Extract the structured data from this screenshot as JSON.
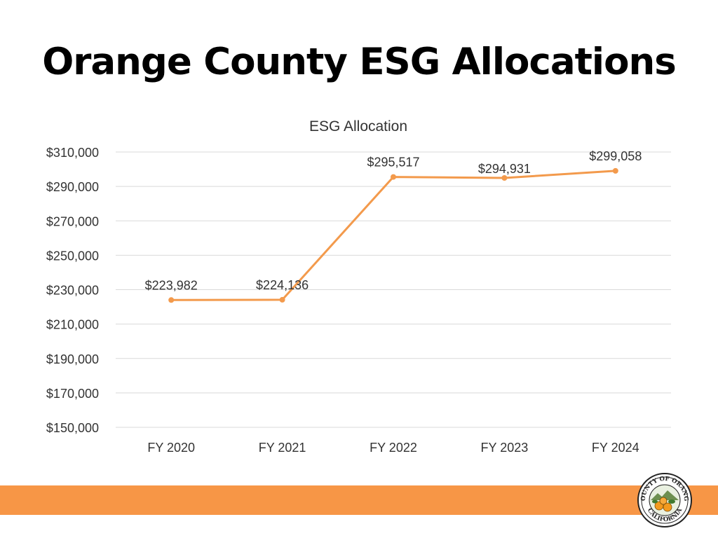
{
  "slide": {
    "title": "Orange County ESG Allocations"
  },
  "seal": {
    "text_top": "COUNTY OF ORANGE",
    "text_bottom": "CALIFORNIA"
  },
  "colors": {
    "line": "#f39a4c",
    "band": "#f79646",
    "grid": "#d9d9d9",
    "text": "#333333"
  },
  "chart_data": {
    "type": "line",
    "title": "ESG Allocation",
    "categories": [
      "FY 2020",
      "FY 2021",
      "FY 2022",
      "FY 2023",
      "FY 2024"
    ],
    "series": [
      {
        "values": [
          223982,
          224136,
          295517,
          294931,
          299058
        ]
      }
    ],
    "data_labels": [
      "$223,982",
      "$224,136",
      "$295,517",
      "$294,931",
      "$299,058"
    ],
    "y_ticks": [
      150000,
      170000,
      190000,
      210000,
      230000,
      250000,
      270000,
      290000,
      310000
    ],
    "y_tick_labels": [
      "$150,000",
      "$170,000",
      "$190,000",
      "$210,000",
      "$230,000",
      "$250,000",
      "$270,000",
      "$290,000",
      "$310,000"
    ],
    "ylim": [
      150000,
      310000
    ],
    "grid": true,
    "legend": "none"
  }
}
